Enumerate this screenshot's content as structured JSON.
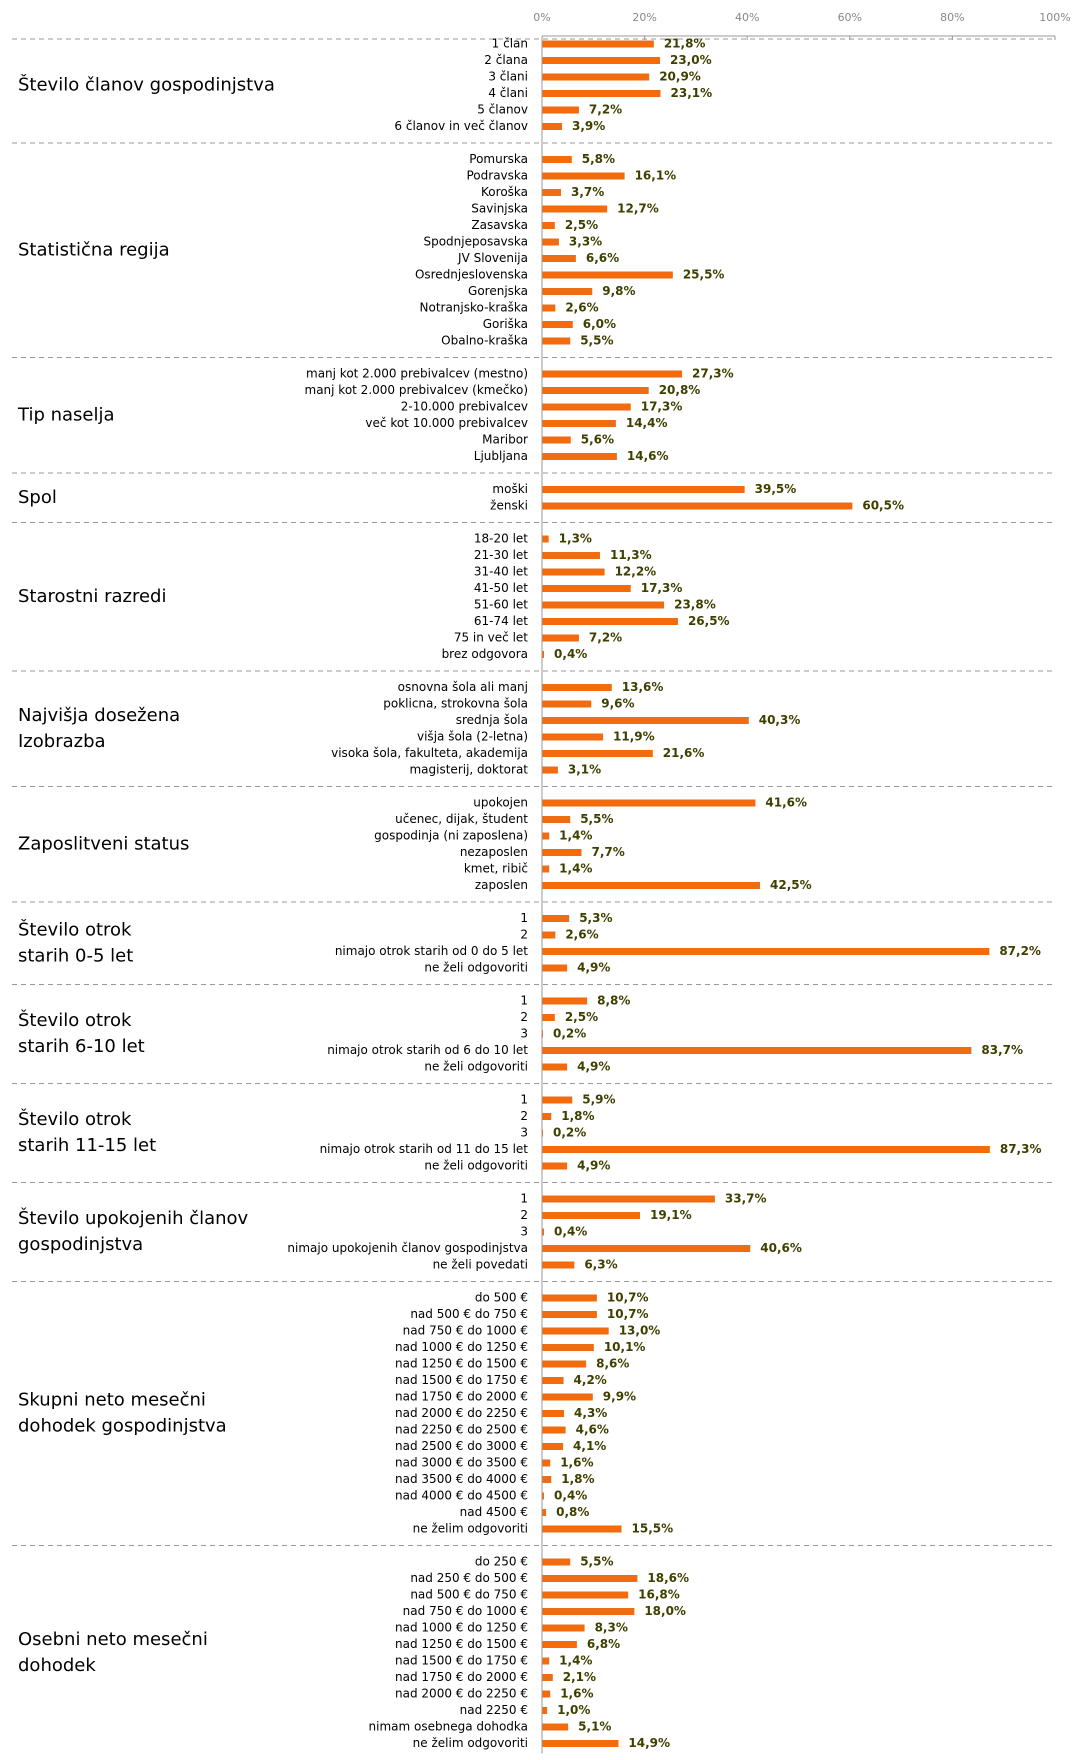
{
  "chart_data": {
    "type": "bar",
    "color": "#f26b0f",
    "xlim": [
      0,
      100
    ],
    "xticks": [
      {
        "value": 0,
        "label": "0%"
      },
      {
        "value": 20,
        "label": "20%"
      },
      {
        "value": 40,
        "label": "40%"
      },
      {
        "value": 60,
        "label": "60%"
      },
      {
        "value": 80,
        "label": "80%"
      },
      {
        "value": 100,
        "label": "100%"
      }
    ],
    "groups": [
      {
        "label": [
          "Število članov gospodinjstva"
        ],
        "categories": [
          "1 član",
          "2 člana",
          "3 člani",
          "4 člani",
          "5 članov",
          "6 članov in več članov"
        ],
        "values": [
          21.8,
          23.0,
          20.9,
          23.1,
          7.2,
          3.9
        ],
        "value_labels": [
          "21,8%",
          "23,0%",
          "20,9%",
          "23,1%",
          "7,2%",
          "3,9%"
        ]
      },
      {
        "label": [
          "Statistična regija"
        ],
        "categories": [
          "Pomurska",
          "Podravska",
          "Koroška",
          "Savinjska",
          "Zasavska",
          "Spodnjeposavska",
          "JV Slovenija",
          "Osrednjeslovenska",
          "Gorenjska",
          "Notranjsko-kraška",
          "Goriška",
          "Obalno-kraška"
        ],
        "values": [
          5.8,
          16.1,
          3.7,
          12.7,
          2.5,
          3.3,
          6.6,
          25.5,
          9.8,
          2.6,
          6.0,
          5.5
        ],
        "value_labels": [
          "5,8%",
          "16,1%",
          "3,7%",
          "12,7%",
          "2,5%",
          "3,3%",
          "6,6%",
          "25,5%",
          "9,8%",
          "2,6%",
          "6,0%",
          "5,5%"
        ]
      },
      {
        "label": [
          "Tip naselja"
        ],
        "categories": [
          "manj kot 2.000 prebivalcev (mestno)",
          "manj kot 2.000 prebivalcev (kmečko)",
          "2-10.000 prebivalcev",
          "več kot 10.000 prebivalcev",
          "Maribor",
          "Ljubljana"
        ],
        "values": [
          27.3,
          20.8,
          17.3,
          14.4,
          5.6,
          14.6
        ],
        "value_labels": [
          "27,3%",
          "20,8%",
          "17,3%",
          "14,4%",
          "5,6%",
          "14,6%"
        ]
      },
      {
        "label": [
          "Spol"
        ],
        "categories": [
          "moški",
          "ženski"
        ],
        "values": [
          39.5,
          60.5
        ],
        "value_labels": [
          "39,5%",
          "60,5%"
        ]
      },
      {
        "label": [
          "Starostni razredi"
        ],
        "categories": [
          "18-20 let",
          "21-30 let",
          "31-40 let",
          "41-50 let",
          "51-60 let",
          "61-74 let",
          "75 in več let",
          "brez odgovora"
        ],
        "values": [
          1.3,
          11.3,
          12.2,
          17.3,
          23.8,
          26.5,
          7.2,
          0.4
        ],
        "value_labels": [
          "1,3%",
          "11,3%",
          "12,2%",
          "17,3%",
          "23,8%",
          "26,5%",
          "7,2%",
          "0,4%"
        ]
      },
      {
        "label": [
          "Najvišja dosežena",
          "Izobrazba"
        ],
        "categories": [
          "osnovna šola ali manj",
          "poklicna, strokovna šola",
          "srednja šola",
          "višja šola (2-letna)",
          "visoka šola, fakulteta, akademija",
          "magisterij, doktorat"
        ],
        "values": [
          13.6,
          9.6,
          40.3,
          11.9,
          21.6,
          3.1
        ],
        "value_labels": [
          "13,6%",
          "9,6%",
          "40,3%",
          "11,9%",
          "21,6%",
          "3,1%"
        ]
      },
      {
        "label": [
          "Zaposlitveni status"
        ],
        "categories": [
          "upokojen",
          "učenec, dijak, študent",
          "gospodinja (ni zaposlena)",
          "nezaposlen",
          "kmet, ribič",
          "zaposlen"
        ],
        "values": [
          41.6,
          5.5,
          1.4,
          7.7,
          1.4,
          42.5
        ],
        "value_labels": [
          "41,6%",
          "5,5%",
          "1,4%",
          "7,7%",
          "1,4%",
          "42,5%"
        ]
      },
      {
        "label": [
          "Število otrok",
          " starih 0-5 let"
        ],
        "categories": [
          "1",
          "2",
          "nimajo otrok starih od 0 do 5 let",
          "ne želi odgovoriti"
        ],
        "values": [
          5.3,
          2.6,
          87.2,
          4.9
        ],
        "value_labels": [
          "5,3%",
          "2,6%",
          "87,2%",
          "4,9%"
        ]
      },
      {
        "label": [
          "Število otrok",
          " starih 6-10 let"
        ],
        "categories": [
          "1",
          "2",
          "3",
          "nimajo otrok starih od 6 do 10 let",
          "ne želi odgovoriti"
        ],
        "values": [
          8.8,
          2.5,
          0.2,
          83.7,
          4.9
        ],
        "value_labels": [
          "8,8%",
          "2,5%",
          "0,2%",
          "83,7%",
          "4,9%"
        ]
      },
      {
        "label": [
          "Število otrok",
          " starih 11-15 let"
        ],
        "categories": [
          "1",
          "2",
          "3",
          "nimajo otrok starih od 11 do 15 let",
          "ne želi odgovoriti"
        ],
        "values": [
          5.9,
          1.8,
          0.2,
          87.3,
          4.9
        ],
        "value_labels": [
          "5,9%",
          "1,8%",
          "0,2%",
          "87,3%",
          "4,9%"
        ]
      },
      {
        "label": [
          "Število upokojenih članov",
          "gospodinjstva"
        ],
        "categories": [
          "1",
          "2",
          "3",
          "nimajo upokojenih članov gospodinjstva",
          "ne želi povedati"
        ],
        "values": [
          33.7,
          19.1,
          0.4,
          40.6,
          6.3
        ],
        "value_labels": [
          "33,7%",
          "19,1%",
          "0,4%",
          "40,6%",
          "6,3%"
        ]
      },
      {
        "label": [
          "Skupni neto mesečni",
          "dohodek gospodinjstva"
        ],
        "categories": [
          "do 500 €",
          "nad 500 € do 750 €",
          "nad 750 € do 1000 €",
          "nad 1000 € do 1250 €",
          "nad 1250 € do 1500 €",
          "nad 1500 € do 1750 €",
          "nad 1750 € do 2000 €",
          "nad 2000 € do 2250 €",
          "nad 2250 € do 2500 €",
          "nad 2500 € do 3000 €",
          "nad 3000 € do 3500 €",
          "nad 3500 € do 4000 €",
          "nad 4000 € do 4500 €",
          "nad 4500 €",
          "ne želim odgovoriti"
        ],
        "values": [
          10.7,
          10.7,
          13.0,
          10.1,
          8.6,
          4.2,
          9.9,
          4.3,
          4.6,
          4.1,
          1.6,
          1.8,
          0.4,
          0.8,
          15.5
        ],
        "value_labels": [
          "10,7%",
          "10,7%",
          "13,0%",
          "10,1%",
          "8,6%",
          "4,2%",
          "9,9%",
          "4,3%",
          "4,6%",
          "4,1%",
          "1,6%",
          "1,8%",
          "0,4%",
          "0,8%",
          "15,5%"
        ]
      },
      {
        "label": [
          "Osebni neto mesečni",
          "dohodek"
        ],
        "categories": [
          "do 250 €",
          "nad 250 € do 500 €",
          "nad 500 € do 750 €",
          "nad 750 € do 1000 €",
          "nad 1000 € do 1250 €",
          "nad 1250 € do 1500 €",
          "nad 1500 € do 1750 €",
          "nad 1750 € do 2000 €",
          "nad 2000 € do 2250 €",
          "nad 2250 €",
          "nimam osebnega dohodka",
          "ne želim odgovoriti"
        ],
        "values": [
          5.5,
          18.6,
          16.8,
          18.0,
          8.3,
          6.8,
          1.4,
          2.1,
          1.6,
          1.0,
          5.1,
          14.9
        ],
        "value_labels": [
          "5,5%",
          "18,6%",
          "16,8%",
          "18,0%",
          "8,3%",
          "6,8%",
          "1,4%",
          "2,1%",
          "1,6%",
          "1,0%",
          "5,1%",
          "14,9%"
        ]
      }
    ]
  }
}
